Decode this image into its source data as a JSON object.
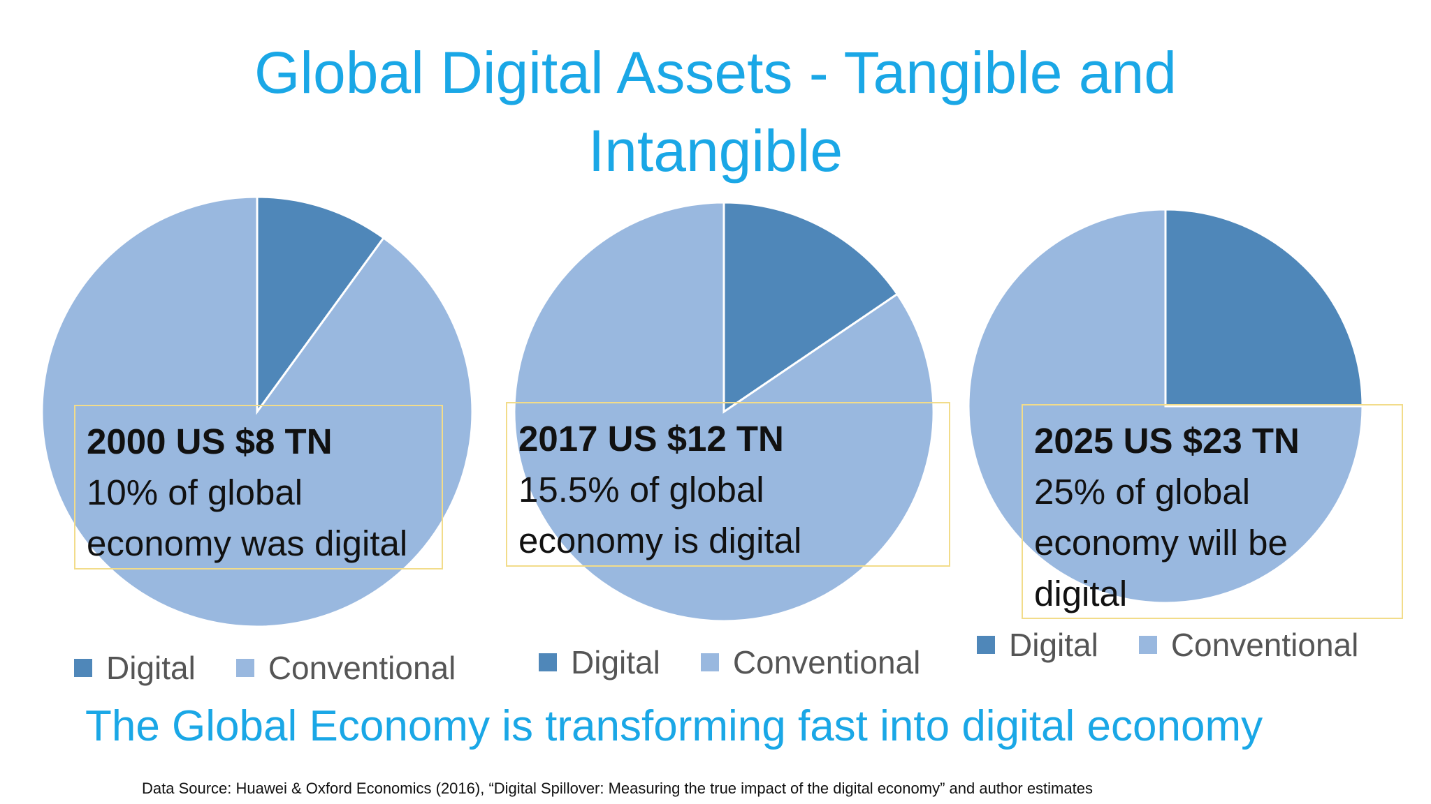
{
  "title_line1": "Global Digital Assets - Tangible and",
  "title_line2": "Intangible",
  "colors": {
    "digital": "#4f87b9",
    "conventional": "#99b8df",
    "accent": "#1aa7e6",
    "annotation_border": "#f2dc8a"
  },
  "chart_data": [
    {
      "type": "pie",
      "categories": [
        "Digital",
        "Conventional"
      ],
      "values": [
        10,
        90
      ],
      "annotation_bold": "2000 US $8 TN",
      "annotation_lines": [
        "10% of global",
        "economy was digital"
      ],
      "legend": [
        "Digital",
        "Conventional"
      ]
    },
    {
      "type": "pie",
      "categories": [
        "Digital",
        "Conventional"
      ],
      "values": [
        15.5,
        84.5
      ],
      "annotation_bold": "2017 US $12 TN",
      "annotation_lines": [
        "15.5% of global",
        "economy is digital"
      ],
      "legend": [
        "Digital",
        "Conventional"
      ]
    },
    {
      "type": "pie",
      "categories": [
        "Digital",
        "Conventional"
      ],
      "values": [
        25,
        75
      ],
      "annotation_bold": "2025 US $23 TN",
      "annotation_lines": [
        "25% of global",
        "economy will be",
        "digital"
      ],
      "legend": [
        "Digital",
        "Conventional"
      ]
    }
  ],
  "tagline": "The Global Economy is transforming fast into digital economy",
  "source": "Data Source: Huawei & Oxford Economics (2016), “Digital Spillover: Measuring the true impact of the digital economy” and author estimates"
}
